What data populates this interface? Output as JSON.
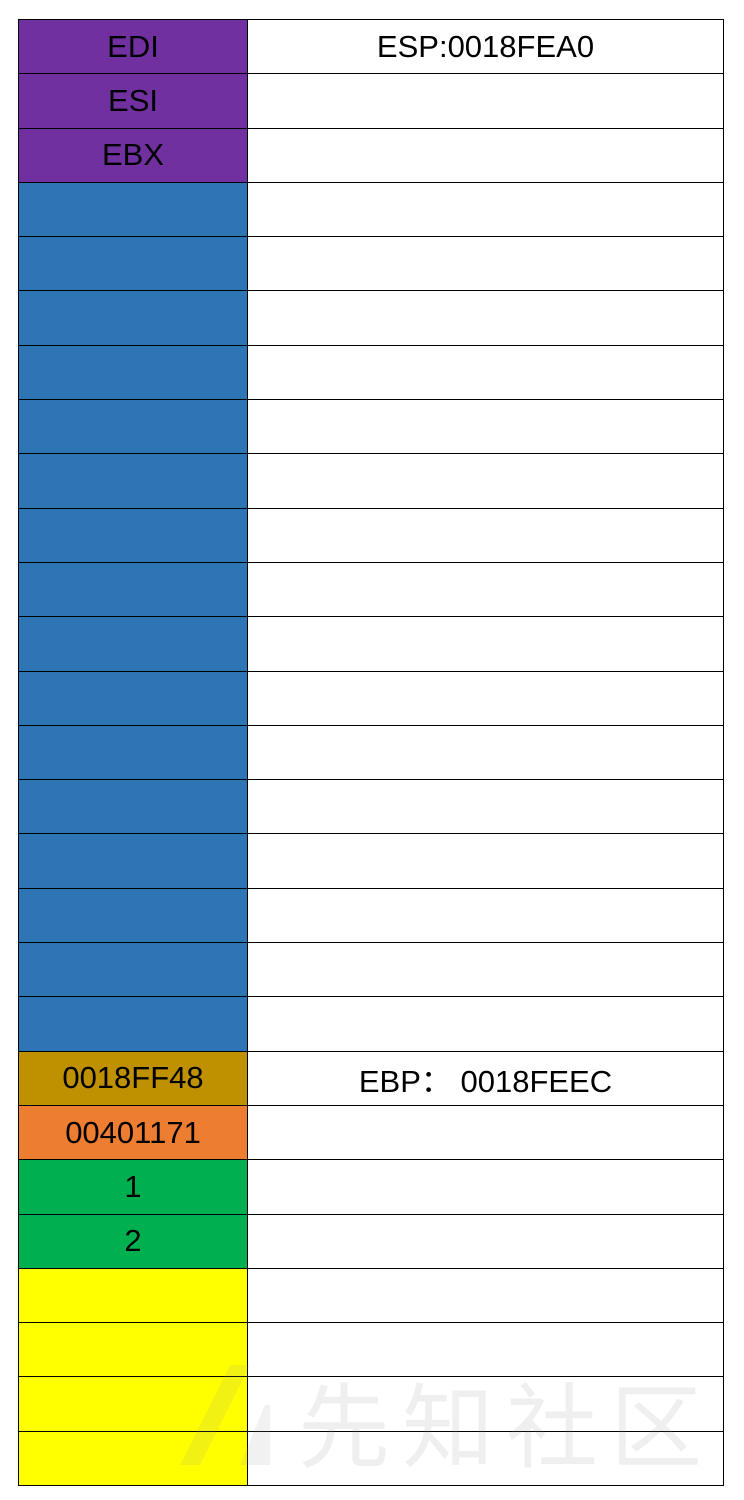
{
  "colors": {
    "register": "#7030a0",
    "local": "#2e75b6",
    "saved_ebp": "#bf9000",
    "return_address": "#ed7d31",
    "argument": "#00b050",
    "caller": "#ffff00",
    "empty": "#ffffff"
  },
  "watermark": "先知社区",
  "rows": [
    {
      "left": "EDI",
      "right": "ESP:0018FEA0",
      "kind": "register"
    },
    {
      "left": "ESI",
      "right": "",
      "kind": "register"
    },
    {
      "left": "EBX",
      "right": "",
      "kind": "register"
    },
    {
      "left": "",
      "right": "",
      "kind": "local"
    },
    {
      "left": "",
      "right": "",
      "kind": "local"
    },
    {
      "left": "",
      "right": "",
      "kind": "local"
    },
    {
      "left": "",
      "right": "",
      "kind": "local"
    },
    {
      "left": "",
      "right": "",
      "kind": "local"
    },
    {
      "left": "",
      "right": "",
      "kind": "local"
    },
    {
      "left": "",
      "right": "",
      "kind": "local"
    },
    {
      "left": "",
      "right": "",
      "kind": "local"
    },
    {
      "left": "",
      "right": "",
      "kind": "local"
    },
    {
      "left": "",
      "right": "",
      "kind": "local"
    },
    {
      "left": "",
      "right": "",
      "kind": "local"
    },
    {
      "left": "",
      "right": "",
      "kind": "local"
    },
    {
      "left": "",
      "right": "",
      "kind": "local"
    },
    {
      "left": "",
      "right": "",
      "kind": "local"
    },
    {
      "left": "",
      "right": "",
      "kind": "local"
    },
    {
      "left": "",
      "right": "",
      "kind": "local"
    },
    {
      "left": "0018FF48",
      "right": "EBP： 0018FEEC",
      "kind": "saved_ebp"
    },
    {
      "left": "00401171",
      "right": "",
      "kind": "return_address"
    },
    {
      "left": "1",
      "right": "",
      "kind": "argument"
    },
    {
      "left": "2",
      "right": "",
      "kind": "argument"
    },
    {
      "left": "",
      "right": "",
      "kind": "caller"
    },
    {
      "left": "",
      "right": "",
      "kind": "caller"
    },
    {
      "left": "",
      "right": "",
      "kind": "caller"
    },
    {
      "left": "",
      "right": "",
      "kind": "caller"
    }
  ]
}
